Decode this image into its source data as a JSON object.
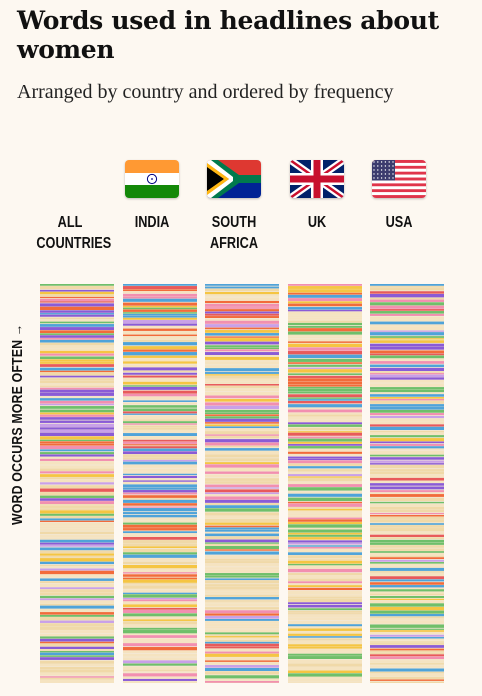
{
  "title": "Words used in headlines about women",
  "subtitle": "Arranged by country and ordered by frequency",
  "axis_label": "WORD OCCURS MORE OFTEN →",
  "colors": {
    "background": "#fdf8f1",
    "palette": [
      "#f26b3a",
      "#8a5bd6",
      "#f5c542",
      "#4fa3d9",
      "#f28fb0",
      "#6fbf6a",
      "#f5e3c0",
      "#e85a5a",
      "#c9a0e8",
      "#f0d9a8"
    ]
  },
  "columns": [
    {
      "key": "all",
      "label": "ALL\nCOUNTRIES",
      "flag": "none"
    },
    {
      "key": "india",
      "label": "INDIA",
      "flag": "india-flag"
    },
    {
      "key": "south_africa",
      "label": "SOUTH\nAFRICA",
      "flag": "south-africa-flag"
    },
    {
      "key": "uk",
      "label": "UK",
      "flag": "uk-flag"
    },
    {
      "key": "usa",
      "label": "USA",
      "flag": "usa-flag"
    }
  ],
  "chart_data": {
    "type": "heatmap",
    "title": "Words used in headlines about women",
    "subtitle": "Arranged by country and ordered by frequency",
    "categories": [
      "ALL COUNTRIES",
      "INDIA",
      "SOUTH AFRICA",
      "UK",
      "USA"
    ],
    "ylabel": "WORD OCCURS MORE OFTEN",
    "encoding": "each horizontal stripe is one word; colour = word category; stripes denser toward the top",
    "series": [
      {
        "name": "ALL COUNTRIES",
        "seed": 11
      },
      {
        "name": "INDIA",
        "seed": 23
      },
      {
        "name": "SOUTH AFRICA",
        "seed": 37
      },
      {
        "name": "UK",
        "seed": 51
      },
      {
        "name": "USA",
        "seed": 69
      }
    ]
  }
}
